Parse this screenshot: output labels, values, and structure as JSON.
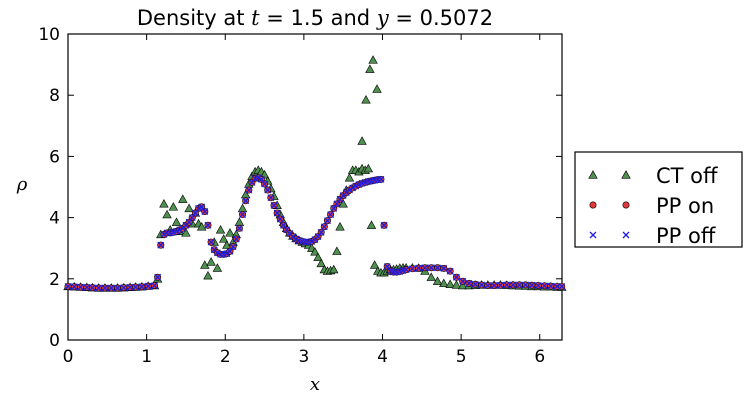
{
  "chart_data": {
    "type": "scatter",
    "title_prefix": "Density at ",
    "title_t_symbol": "t",
    "title_t_value": " = 1.5",
    "title_middle": " and ",
    "title_y_symbol": "y",
    "title_y_value": " = 0.5072",
    "xlabel": "x",
    "ylabel": "ρ",
    "xlim": [
      0,
      6.283
    ],
    "ylim": [
      0,
      10
    ],
    "xticks": [
      "0",
      "1",
      "2",
      "3",
      "4",
      "5",
      "6"
    ],
    "yticks": [
      "0",
      "2",
      "4",
      "6",
      "8",
      "10"
    ],
    "grid": false,
    "legend_position": "right, outside",
    "series": [
      {
        "name": "CT off",
        "marker": "triangle",
        "color": "#3a7a3a",
        "x": [
          0.0,
          0.08,
          0.16,
          0.24,
          0.31,
          0.39,
          0.47,
          0.55,
          0.63,
          0.71,
          0.79,
          0.86,
          0.94,
          1.02,
          1.1,
          1.14,
          1.18,
          1.22,
          1.26,
          1.3,
          1.34,
          1.38,
          1.42,
          1.46,
          1.5,
          1.54,
          1.58,
          1.62,
          1.66,
          1.7,
          1.74,
          1.78,
          1.82,
          1.86,
          1.9,
          1.94,
          1.98,
          2.02,
          2.06,
          2.1,
          2.14,
          2.18,
          2.22,
          2.26,
          2.3,
          2.34,
          2.38,
          2.42,
          2.46,
          2.5,
          2.54,
          2.58,
          2.62,
          2.66,
          2.7,
          2.74,
          2.78,
          2.82,
          2.86,
          2.9,
          2.94,
          2.98,
          3.02,
          3.06,
          3.1,
          3.14,
          3.18,
          3.22,
          3.26,
          3.3,
          3.34,
          3.38,
          3.42,
          3.46,
          3.5,
          3.54,
          3.58,
          3.62,
          3.66,
          3.7,
          3.74,
          3.78,
          3.82,
          3.86,
          3.9,
          3.94,
          3.98,
          4.02,
          4.06,
          4.1,
          4.14,
          4.18,
          4.22,
          4.26,
          4.3,
          4.38,
          4.46,
          4.54,
          4.62,
          4.7,
          4.78,
          4.86,
          4.94,
          5.02,
          5.1,
          5.18,
          5.26,
          5.34,
          5.42,
          5.5,
          5.58,
          5.66,
          5.74,
          5.82,
          5.9,
          5.98,
          6.06,
          6.14,
          6.22,
          6.28
        ],
        "y": [
          1.75,
          1.74,
          1.73,
          1.72,
          1.71,
          1.7,
          1.7,
          1.7,
          1.7,
          1.71,
          1.72,
          1.73,
          1.74,
          1.76,
          1.78,
          2.0,
          3.45,
          4.45,
          4.1,
          3.6,
          4.35,
          3.85,
          3.55,
          4.6,
          3.5,
          4.3,
          3.8,
          4.15,
          3.8,
          3.7,
          2.45,
          2.1,
          2.55,
          3.2,
          2.35,
          3.6,
          3.3,
          3.1,
          3.5,
          3.2,
          3.45,
          3.85,
          4.3,
          4.75,
          5.1,
          5.35,
          5.5,
          5.55,
          5.5,
          5.4,
          5.2,
          4.95,
          4.7,
          4.4,
          4.1,
          3.85,
          3.65,
          3.5,
          3.4,
          3.32,
          3.25,
          3.2,
          3.15,
          3.1,
          3.0,
          2.88,
          2.7,
          2.5,
          2.3,
          2.25,
          2.27,
          2.3,
          2.9,
          3.7,
          4.45,
          4.9,
          5.3,
          5.55,
          5.55,
          5.5,
          5.6,
          5.55,
          5.6,
          3.75,
          2.45,
          2.25,
          2.2,
          2.2,
          2.25,
          2.3,
          2.3,
          2.32,
          2.35,
          2.36,
          2.36,
          2.36,
          2.35,
          2.25,
          2.05,
          1.92,
          1.85,
          1.82,
          1.8,
          1.78,
          1.78,
          1.79,
          1.8,
          1.8,
          1.8,
          1.8,
          1.79,
          1.78,
          1.77,
          1.76,
          1.75,
          1.75,
          1.74,
          1.74,
          1.73,
          1.73
        ],
        "extra_points_x": [
          3.74,
          3.79,
          3.84,
          3.88,
          3.93
        ],
        "extra_points_y": [
          6.5,
          7.85,
          8.85,
          9.15,
          8.2
        ]
      },
      {
        "name": "PP on",
        "marker": "circle",
        "color": "#d42020",
        "x": [
          0.0,
          0.08,
          0.16,
          0.24,
          0.31,
          0.39,
          0.47,
          0.55,
          0.63,
          0.71,
          0.79,
          0.86,
          0.94,
          1.02,
          1.1,
          1.14,
          1.18,
          1.22,
          1.26,
          1.3,
          1.34,
          1.38,
          1.42,
          1.46,
          1.5,
          1.54,
          1.58,
          1.62,
          1.66,
          1.7,
          1.74,
          1.78,
          1.82,
          1.86,
          1.9,
          1.94,
          1.98,
          2.02,
          2.06,
          2.1,
          2.14,
          2.18,
          2.22,
          2.26,
          2.3,
          2.34,
          2.38,
          2.42,
          2.46,
          2.5,
          2.54,
          2.58,
          2.62,
          2.66,
          2.7,
          2.74,
          2.78,
          2.82,
          2.86,
          2.9,
          2.94,
          2.98,
          3.02,
          3.06,
          3.1,
          3.14,
          3.18,
          3.22,
          3.26,
          3.3,
          3.34,
          3.38,
          3.42,
          3.46,
          3.5,
          3.54,
          3.58,
          3.62,
          3.66,
          3.7,
          3.74,
          3.78,
          3.82,
          3.86,
          3.9,
          3.94,
          3.98,
          4.02,
          4.06,
          4.1,
          4.14,
          4.18,
          4.22,
          4.26,
          4.3,
          4.38,
          4.46,
          4.54,
          4.62,
          4.7,
          4.78,
          4.86,
          4.94,
          5.02,
          5.1,
          5.18,
          5.26,
          5.34,
          5.42,
          5.5,
          5.58,
          5.66,
          5.74,
          5.82,
          5.9,
          5.98,
          6.06,
          6.14,
          6.22,
          6.28
        ],
        "y": [
          1.75,
          1.74,
          1.73,
          1.72,
          1.71,
          1.7,
          1.7,
          1.7,
          1.7,
          1.71,
          1.72,
          1.73,
          1.74,
          1.76,
          1.78,
          2.05,
          3.1,
          3.45,
          3.5,
          3.5,
          3.52,
          3.55,
          3.6,
          3.65,
          3.75,
          3.85,
          4.0,
          4.15,
          4.3,
          4.35,
          4.2,
          3.75,
          3.2,
          2.95,
          2.85,
          2.8,
          2.8,
          2.82,
          2.9,
          3.05,
          3.3,
          3.65,
          4.1,
          4.55,
          4.9,
          5.15,
          5.28,
          5.3,
          5.25,
          5.1,
          4.9,
          4.65,
          4.4,
          4.15,
          3.95,
          3.75,
          3.6,
          3.48,
          3.38,
          3.3,
          3.25,
          3.22,
          3.2,
          3.2,
          3.22,
          3.28,
          3.38,
          3.52,
          3.7,
          3.9,
          4.1,
          4.3,
          4.45,
          4.6,
          4.72,
          4.82,
          4.9,
          4.97,
          5.03,
          5.08,
          5.12,
          5.15,
          5.18,
          5.2,
          5.22,
          5.24,
          5.25,
          3.75,
          2.4,
          2.25,
          2.22,
          2.22,
          2.24,
          2.27,
          2.3,
          2.33,
          2.35,
          2.36,
          2.36,
          2.36,
          2.34,
          2.25,
          2.05,
          1.92,
          1.85,
          1.82,
          1.8,
          1.78,
          1.78,
          1.79,
          1.8,
          1.8,
          1.8,
          1.8,
          1.79,
          1.78,
          1.77,
          1.76,
          1.75,
          1.75
        ]
      },
      {
        "name": "PP off",
        "marker": "x",
        "color": "#1f1fe0",
        "x": [
          0.0,
          0.08,
          0.16,
          0.24,
          0.31,
          0.39,
          0.47,
          0.55,
          0.63,
          0.71,
          0.79,
          0.86,
          0.94,
          1.02,
          1.1,
          1.14,
          1.18,
          1.22,
          1.26,
          1.3,
          1.34,
          1.38,
          1.42,
          1.46,
          1.5,
          1.54,
          1.58,
          1.62,
          1.66,
          1.7,
          1.74,
          1.78,
          1.82,
          1.86,
          1.9,
          1.94,
          1.98,
          2.02,
          2.06,
          2.1,
          2.14,
          2.18,
          2.22,
          2.26,
          2.3,
          2.34,
          2.38,
          2.42,
          2.46,
          2.5,
          2.54,
          2.58,
          2.62,
          2.66,
          2.7,
          2.74,
          2.78,
          2.82,
          2.86,
          2.9,
          2.94,
          2.98,
          3.02,
          3.06,
          3.1,
          3.14,
          3.18,
          3.22,
          3.26,
          3.3,
          3.34,
          3.38,
          3.42,
          3.46,
          3.5,
          3.54,
          3.58,
          3.62,
          3.66,
          3.7,
          3.74,
          3.78,
          3.82,
          3.86,
          3.9,
          3.94,
          3.98,
          4.02,
          4.06,
          4.1,
          4.14,
          4.18,
          4.22,
          4.26,
          4.3,
          4.38,
          4.46,
          4.54,
          4.62,
          4.7,
          4.78,
          4.86,
          4.94,
          5.02,
          5.1,
          5.18,
          5.26,
          5.34,
          5.42,
          5.5,
          5.58,
          5.66,
          5.74,
          5.82,
          5.9,
          5.98,
          6.06,
          6.14,
          6.22,
          6.28
        ],
        "y": [
          1.75,
          1.74,
          1.73,
          1.72,
          1.71,
          1.7,
          1.7,
          1.7,
          1.7,
          1.71,
          1.72,
          1.73,
          1.74,
          1.76,
          1.78,
          2.05,
          3.1,
          3.45,
          3.5,
          3.5,
          3.52,
          3.55,
          3.6,
          3.65,
          3.75,
          3.85,
          4.0,
          4.15,
          4.3,
          4.35,
          4.2,
          3.75,
          3.2,
          2.95,
          2.85,
          2.8,
          2.8,
          2.82,
          2.9,
          3.05,
          3.3,
          3.65,
          4.1,
          4.55,
          4.9,
          5.15,
          5.28,
          5.3,
          5.25,
          5.1,
          4.9,
          4.65,
          4.4,
          4.15,
          3.95,
          3.75,
          3.6,
          3.48,
          3.38,
          3.3,
          3.25,
          3.22,
          3.2,
          3.2,
          3.22,
          3.28,
          3.38,
          3.52,
          3.7,
          3.9,
          4.1,
          4.3,
          4.45,
          4.6,
          4.72,
          4.82,
          4.9,
          4.97,
          5.03,
          5.08,
          5.12,
          5.15,
          5.18,
          5.2,
          5.22,
          5.24,
          5.25,
          3.75,
          2.4,
          2.25,
          2.22,
          2.22,
          2.24,
          2.27,
          2.3,
          2.33,
          2.35,
          2.36,
          2.36,
          2.36,
          2.34,
          2.25,
          2.05,
          1.92,
          1.85,
          1.82,
          1.8,
          1.78,
          1.78,
          1.79,
          1.8,
          1.8,
          1.8,
          1.8,
          1.79,
          1.78,
          1.77,
          1.76,
          1.75,
          1.75
        ]
      }
    ]
  }
}
